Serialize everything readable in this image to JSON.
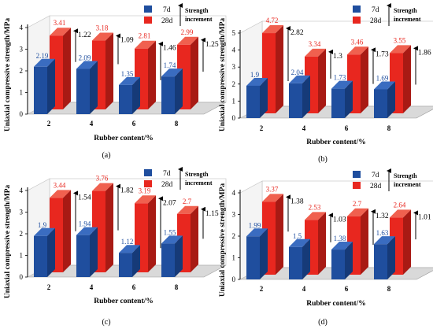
{
  "colors": {
    "d7": "#1f4e9e",
    "d7_side": "#163a78",
    "d7_top": "#3a6cc0",
    "d28": "#e8271f",
    "d28_side": "#a81a14",
    "d28_top": "#f0604f",
    "label7": "#1f4e9e",
    "label28": "#e8271f",
    "axis": "#000000",
    "floor": "#d9d9d9"
  },
  "legend": {
    "d7": "7d",
    "d28": "28d",
    "increment_line1": "Strength",
    "increment_line2": "increment"
  },
  "chart_data": [
    {
      "type": "bar",
      "panel_label": "(a)",
      "categories": [
        "2",
        "4",
        "6",
        "8"
      ],
      "xlabel": "Rubber content/%",
      "ylabel": "Uniaxial compressive strength/MPa",
      "ylim": [
        0,
        4
      ],
      "yticks": [
        "0",
        "1",
        "2",
        "3",
        "4"
      ],
      "series": [
        {
          "name": "7d",
          "values": [
            2.19,
            2.09,
            1.35,
            1.74
          ],
          "labels": [
            "2.19",
            "2.09",
            "1.35",
            "1.74"
          ]
        },
        {
          "name": "28d",
          "values": [
            3.41,
            3.18,
            2.81,
            2.99
          ],
          "labels": [
            "3.41",
            "3.18",
            "2.81",
            "2.99"
          ]
        }
      ],
      "increments": [
        "1.22",
        "1.09",
        "1.46",
        "1.25"
      ]
    },
    {
      "type": "bar",
      "panel_label": "(b)",
      "categories": [
        "2",
        "4",
        "6",
        "8"
      ],
      "xlabel": "Rubber content/%",
      "ylabel": "Uniaxial compressive strength/MPa",
      "ylim": [
        0,
        5
      ],
      "yticks": [
        "0",
        "1",
        "2",
        "3",
        "4",
        "5"
      ],
      "series": [
        {
          "name": "7d",
          "values": [
            1.9,
            2.04,
            1.73,
            1.69
          ],
          "labels": [
            "1.9",
            "2.04",
            "1.73",
            "1.69"
          ]
        },
        {
          "name": "28d",
          "values": [
            4.72,
            3.34,
            3.46,
            3.55
          ],
          "labels": [
            "4.72",
            "3.34",
            "3.46",
            "3.55"
          ]
        }
      ],
      "increments": [
        "2.82",
        "1.3",
        "1.73",
        "1.86"
      ]
    },
    {
      "type": "bar",
      "panel_label": "(c)",
      "categories": [
        "2",
        "4",
        "6",
        "8"
      ],
      "xlabel": "Rubber content/%",
      "ylabel": "Uniaxial compressive strength/MPa",
      "ylim": [
        0,
        4
      ],
      "yticks": [
        "0",
        "1",
        "2",
        "3",
        "4"
      ],
      "series": [
        {
          "name": "7d",
          "values": [
            1.9,
            1.94,
            1.12,
            1.55
          ],
          "labels": [
            "1.9",
            "1.94",
            "1.12",
            "1.55"
          ]
        },
        {
          "name": "28d",
          "values": [
            3.44,
            3.76,
            3.19,
            2.7
          ],
          "labels": [
            "3.44",
            "3.76",
            "3.19",
            "2.7"
          ]
        }
      ],
      "increments": [
        "1.54",
        "1.82",
        "2.07",
        "1.15"
      ]
    },
    {
      "type": "bar",
      "panel_label": "(d)",
      "categories": [
        "2",
        "4",
        "6",
        "8"
      ],
      "xlabel": "Rubber content/%",
      "ylabel": "Uniaxial compressive strength/MPa",
      "ylim": [
        0,
        4
      ],
      "yticks": [
        "0",
        "1",
        "2",
        "3",
        "4"
      ],
      "series": [
        {
          "name": "7d",
          "values": [
            1.99,
            1.5,
            1.38,
            1.63
          ],
          "labels": [
            "1.99",
            "1.5",
            "1.38",
            "1.63"
          ]
        },
        {
          "name": "28d",
          "values": [
            3.37,
            2.53,
            2.7,
            2.64
          ],
          "labels": [
            "3.37",
            "2.53",
            "2.7",
            "2.64"
          ]
        }
      ],
      "increments": [
        "1.38",
        "1.03",
        "1.32",
        "1.01"
      ]
    }
  ]
}
